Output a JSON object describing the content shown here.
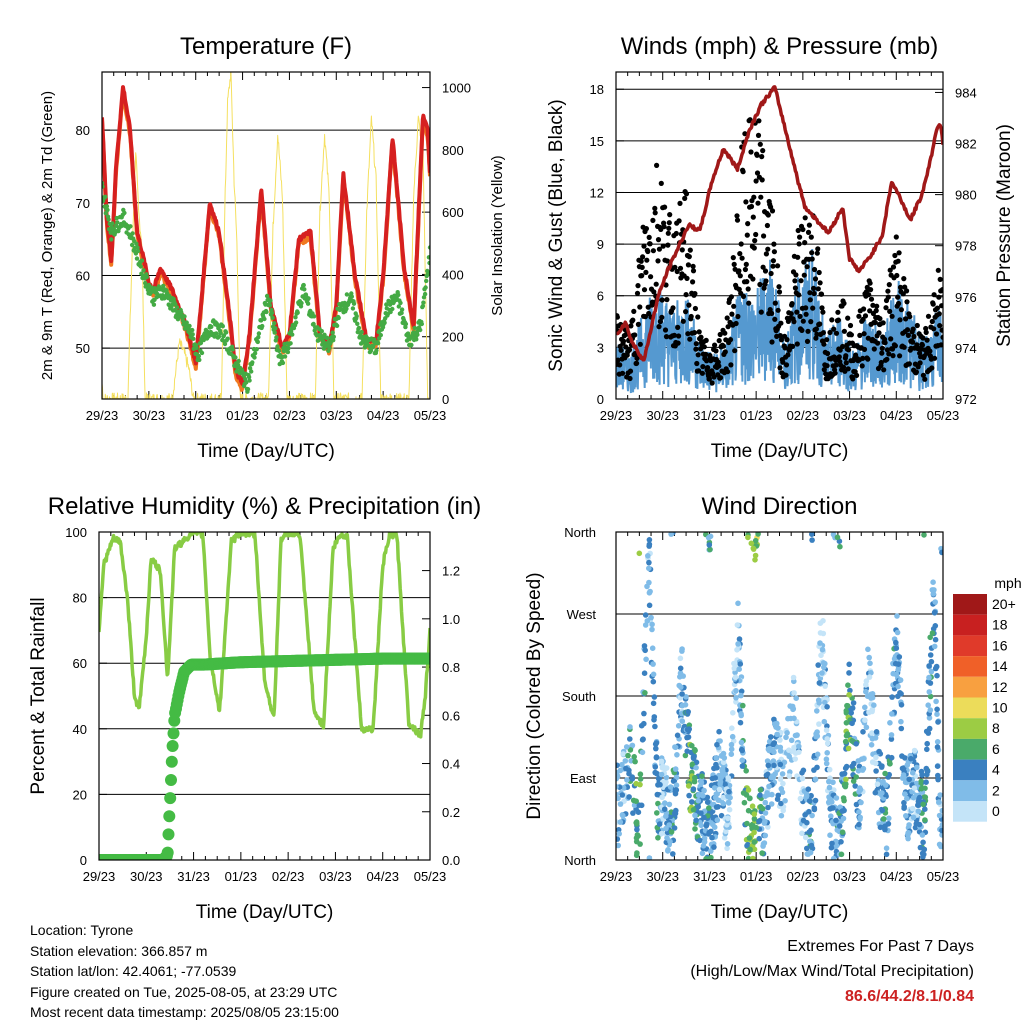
{
  "chart_data": [
    {
      "type": "line",
      "title": "Temperature (F)",
      "xlabel": "Time (Day/UTC)",
      "ylabel": "2m & 9m T (Red, Orange) & 2m Td (Green)",
      "ylabel_right": "Solar Insolation (Yellow)",
      "x_ticks": [
        "29/23",
        "30/23",
        "31/23",
        "01/23",
        "02/23",
        "03/23",
        "04/23",
        "05/23"
      ],
      "ylim": [
        43,
        88
      ],
      "y_ticks": [
        50,
        60,
        70,
        80
      ],
      "ylim_right": [
        0,
        1050
      ],
      "y_ticks_right": [
        0,
        200,
        400,
        600,
        800,
        1000
      ],
      "colors": {
        "temp_2m": "#d62020",
        "temp_9m": "#f07820",
        "dewpoint": "#44aa44",
        "solar": "#f5e060"
      },
      "series": [
        {
          "name": "2m T",
          "x": [
            0,
            0.1,
            0.2,
            0.3,
            0.45,
            0.6,
            0.75,
            0.9,
            1.0,
            1.1,
            1.25,
            1.5,
            1.8,
            2.0,
            2.1,
            2.3,
            2.5,
            2.75,
            2.85,
            3.0,
            3.15,
            3.4,
            3.6,
            3.85,
            4.0,
            4.2,
            4.45,
            4.65,
            4.85,
            5.0,
            5.15,
            5.4,
            5.65,
            5.85,
            6.0,
            6.2,
            6.45,
            6.65,
            6.85,
            6.95,
            7.0
          ],
          "y": [
            82,
            68,
            62,
            75,
            86,
            80,
            66,
            62,
            59,
            58,
            61,
            58,
            53,
            48,
            55,
            70,
            66,
            53,
            47,
            45,
            52,
            72,
            56,
            50,
            52,
            65,
            66,
            52,
            50,
            56,
            74,
            60,
            51,
            51,
            60,
            79,
            61,
            53,
            82,
            80,
            74
          ]
        },
        {
          "name": "2m Td",
          "x": [
            0,
            0.2,
            0.45,
            0.6,
            0.75,
            0.9,
            1.1,
            1.3,
            1.6,
            1.9,
            2.05,
            2.3,
            2.6,
            2.85,
            3.1,
            3.35,
            3.55,
            3.8,
            4.0,
            4.3,
            4.6,
            4.85,
            5.05,
            5.3,
            5.55,
            5.85,
            6.05,
            6.3,
            6.55,
            6.8,
            7.0
          ],
          "y": [
            72,
            66,
            68,
            66,
            63,
            60,
            57,
            58,
            55,
            52,
            49,
            53,
            52,
            48,
            45,
            52,
            57,
            48,
            51,
            58,
            52,
            50,
            55,
            57,
            51,
            50,
            55,
            57,
            51,
            53,
            63
          ]
        },
        {
          "name": "Solar",
          "x": [
            0,
            0.03,
            0.07,
            0.1,
            0.55,
            0.65,
            0.72,
            0.78,
            0.85,
            0.92,
            1.5,
            1.65,
            1.75,
            1.85,
            1.95,
            2.55,
            2.62,
            2.68,
            2.75,
            2.82,
            2.88,
            2.95,
            3.55,
            3.65,
            3.75,
            3.85,
            3.95,
            4.55,
            4.65,
            4.75,
            4.85,
            4.95,
            5.55,
            5.65,
            5.75,
            5.85,
            5.95,
            6.55,
            6.65,
            6.75,
            6.85,
            6.95
          ],
          "y": [
            50,
            0,
            0,
            0,
            0,
            500,
            800,
            600,
            500,
            0,
            0,
            180,
            150,
            100,
            0,
            0,
            600,
            950,
            1050,
            700,
            500,
            0,
            0,
            550,
            850,
            650,
            0,
            0,
            600,
            850,
            650,
            0,
            0,
            600,
            900,
            700,
            0,
            0,
            650,
            900,
            800,
            0
          ]
        }
      ]
    },
    {
      "type": "scatter",
      "title": "Winds (mph) & Pressure (mb)",
      "xlabel": "Time (Day/UTC)",
      "ylabel": "Sonic Wind & Gust (Blue, Black)",
      "ylabel_right": "Station Pressure (Maroon)",
      "x_ticks": [
        "29/23",
        "30/23",
        "31/23",
        "01/23",
        "02/23",
        "03/23",
        "04/23",
        "05/23"
      ],
      "ylim": [
        0,
        19
      ],
      "y_ticks": [
        0,
        3,
        6,
        9,
        12,
        15,
        18
      ],
      "ylim_right": [
        972,
        984.8
      ],
      "y_ticks_right": [
        972,
        974,
        976,
        978,
        980,
        982,
        984
      ],
      "colors": {
        "wind": "#5599d0",
        "gust": "#000000",
        "pressure": "#a01818"
      },
      "series": [
        {
          "name": "Pressure",
          "x": [
            0,
            0.2,
            0.35,
            0.6,
            0.9,
            1.1,
            1.3,
            1.55,
            1.8,
            2.05,
            2.3,
            2.6,
            2.85,
            3.1,
            3.4,
            3.7,
            3.9,
            4.05,
            4.3,
            4.55,
            4.85,
            5.0,
            5.2,
            5.45,
            5.7,
            5.9,
            6.05,
            6.3,
            6.55,
            6.75,
            6.85,
            6.95,
            7.0
          ],
          "y": [
            974.5,
            975,
            974.2,
            973.5,
            976,
            977,
            977.8,
            978.8,
            978.6,
            980.5,
            981.8,
            981,
            982.5,
            983.5,
            984.2,
            982,
            980.5,
            979.5,
            979,
            978.5,
            979.5,
            977.5,
            977,
            977.6,
            978.4,
            980.5,
            980,
            979,
            980,
            981.5,
            982.5,
            982.8,
            982
          ]
        },
        {
          "name": "Wind",
          "x": [
            0,
            0.3,
            0.6,
            0.9,
            1.2,
            1.5,
            1.8,
            2.1,
            2.4,
            2.7,
            3.0,
            3.3,
            3.6,
            3.9,
            4.2,
            4.5,
            4.8,
            5.1,
            5.4,
            5.7,
            6.0,
            6.3,
            6.6,
            6.9
          ],
          "y": [
            2,
            1.5,
            3,
            4,
            3,
            3.5,
            2,
            1.5,
            2,
            4,
            3.5,
            5,
            2,
            4,
            5,
            2,
            3,
            1.5,
            3,
            2,
            4,
            3,
            2,
            3
          ]
        },
        {
          "name": "Gust",
          "x": [
            0,
            0.3,
            0.6,
            0.9,
            1.2,
            1.5,
            1.8,
            2.1,
            2.4,
            2.7,
            3.0,
            3.3,
            3.6,
            3.9,
            4.2,
            4.5,
            4.8,
            5.1,
            5.4,
            5.7,
            6.0,
            6.3,
            6.6,
            6.9
          ],
          "y": [
            4,
            3,
            9,
            12,
            8,
            10,
            3,
            2.5,
            4,
            12,
            14,
            10,
            3,
            8,
            10,
            3,
            5,
            3,
            6,
            4,
            8,
            4,
            3,
            6
          ]
        }
      ]
    },
    {
      "type": "line",
      "title": "Relative Humidity (%) & Precipitation (in)",
      "xlabel": "Time (Day/UTC)",
      "ylabel": "Percent & Total Rainfall",
      "x_ticks": [
        "29/23",
        "30/23",
        "31/23",
        "01/23",
        "02/23",
        "03/23",
        "04/23",
        "05/23"
      ],
      "ylim": [
        0,
        100
      ],
      "y_ticks": [
        0,
        20,
        40,
        60,
        80,
        100
      ],
      "ylim_right": [
        0,
        1.36
      ],
      "y_ticks_right": [
        0.0,
        0.2,
        0.4,
        0.6,
        0.8,
        1.0,
        1.2
      ],
      "colors": {
        "rh": "#88cc44",
        "precip": "#44bb44"
      },
      "series": [
        {
          "name": "RH",
          "x": [
            0,
            0.1,
            0.3,
            0.45,
            0.6,
            0.75,
            0.85,
            1.0,
            1.1,
            1.3,
            1.45,
            1.6,
            1.85,
            1.95,
            2.2,
            2.35,
            2.55,
            2.8,
            3.0,
            3.3,
            3.5,
            3.7,
            3.85,
            4.05,
            4.25,
            4.55,
            4.75,
            4.95,
            5.1,
            5.25,
            5.55,
            5.8,
            6.0,
            6.15,
            6.3,
            6.55,
            6.8,
            6.9,
            7.0
          ],
          "y": [
            70,
            90,
            98,
            97,
            80,
            50,
            46,
            68,
            92,
            88,
            55,
            95,
            98,
            100,
            99,
            62,
            45,
            97,
            100,
            99,
            55,
            43,
            98,
            100,
            99,
            45,
            41,
            95,
            99,
            99,
            40,
            40,
            90,
            99,
            99,
            42,
            38,
            50,
            70
          ]
        },
        {
          "name": "Precip",
          "x": [
            0,
            0.5,
            1.0,
            1.35,
            1.45,
            1.55,
            1.6,
            1.7,
            1.8,
            1.95,
            2.2,
            3.0,
            4.0,
            5.0,
            6.0,
            7.0
          ],
          "y": [
            0,
            0,
            0,
            0,
            0.02,
            0.45,
            0.6,
            0.7,
            0.78,
            0.81,
            0.81,
            0.82,
            0.825,
            0.83,
            0.835,
            0.835
          ]
        }
      ]
    },
    {
      "type": "scatter",
      "title": "Wind Direction",
      "xlabel": "Time (Day/UTC)",
      "ylabel": "Direction (Colored By Speed)",
      "x_ticks": [
        "29/23",
        "30/23",
        "31/23",
        "01/23",
        "02/23",
        "03/23",
        "04/23",
        "05/23"
      ],
      "y_ticks": [
        "North",
        "East",
        "South",
        "West",
        "North"
      ],
      "legend": {
        "title": "mph",
        "labels": [
          "20+",
          "18",
          "16",
          "14",
          "12",
          "10",
          "8",
          "6",
          "4",
          "2",
          "0"
        ],
        "colors": [
          "#a01818",
          "#c82020",
          "#e03a2a",
          "#f06028",
          "#f8a040",
          "#ecdc5a",
          "#9ccc44",
          "#4aaa6a",
          "#3a80c0",
          "#80bce8",
          "#c4e4f8"
        ]
      },
      "series": [
        {
          "name": "Direction",
          "x": [
            0.1,
            0.3,
            0.5,
            0.7,
            0.9,
            1.0,
            1.2,
            1.4,
            1.6,
            1.8,
            2.0,
            2.2,
            2.4,
            2.6,
            2.8,
            3.0,
            3.2,
            3.4,
            3.6,
            3.8,
            4.0,
            4.2,
            4.4,
            4.6,
            4.8,
            5.0,
            5.2,
            5.4,
            5.6,
            5.8,
            6.0,
            6.2,
            6.4,
            6.6,
            6.8,
            6.95
          ],
          "y": [
            60,
            120,
            20,
            350,
            40,
            80,
            30,
            200,
            90,
            60,
            20,
            100,
            50,
            250,
            40,
            10,
            60,
            120,
            80,
            170,
            60,
            30,
            250,
            50,
            20,
            180,
            60,
            200,
            90,
            40,
            250,
            60,
            80,
            40,
            300,
            20
          ],
          "speed": [
            2,
            4,
            6,
            2,
            4,
            1,
            4,
            2,
            6,
            3,
            4,
            2,
            2,
            1,
            6,
            8,
            2,
            3,
            1,
            1,
            2,
            4,
            1,
            2,
            4,
            6,
            3,
            1,
            2,
            4,
            3,
            3,
            2,
            5,
            3,
            2
          ]
        }
      ]
    }
  ],
  "info": {
    "location": "Location: Tyrone",
    "elevation": "Station elevation: 366.857 m",
    "latlon": "Station lat/lon: 42.4061; -77.0539",
    "created": "Figure created on Tue, 2025-08-05, at 23:29 UTC",
    "recent": "Most recent data timestamp: 2025/08/05 23:15:00"
  },
  "extremes": {
    "title": "Extremes For Past 7 Days",
    "subtitle": "(High/Low/Max Wind/Total Precipitation)",
    "values": "86.6/44.2/8.1/0.84"
  }
}
